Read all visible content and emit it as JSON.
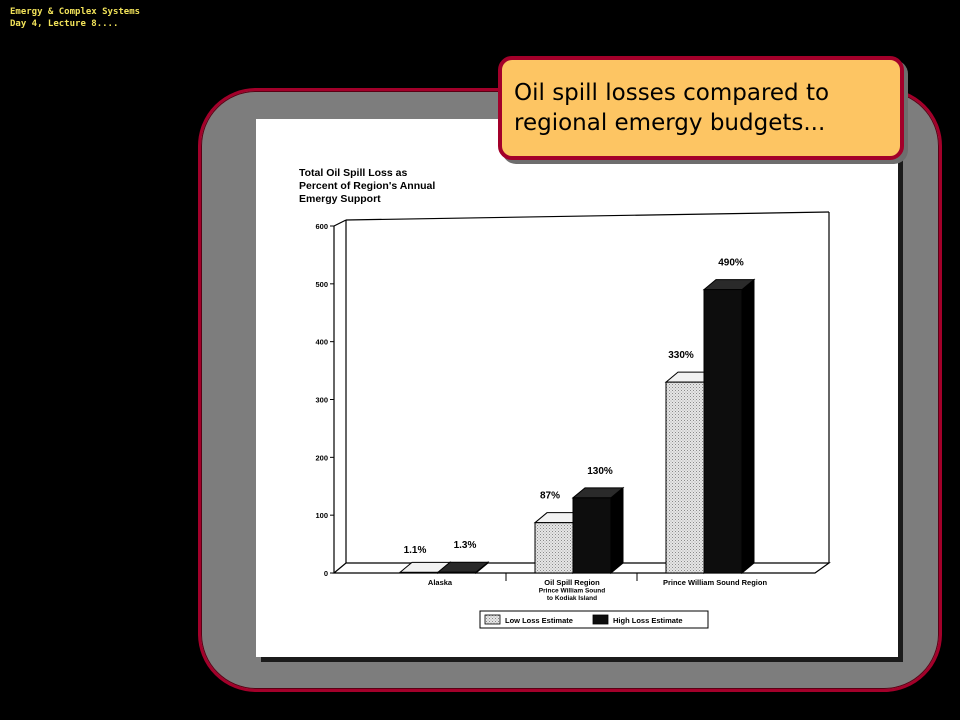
{
  "header": {
    "line1": "Emergy & Complex Systems",
    "line2": "Day 4, Lecture 8...."
  },
  "callout": {
    "text": "Oil spill losses compared to regional emergy budgets..."
  },
  "colors": {
    "frame_border": "#a3002a",
    "frame_fill": "#7d7d7d",
    "callout_fill": "#fdc563",
    "header_text": "#f2e35a"
  },
  "chart_data": {
    "type": "bar",
    "title_lines": [
      "Total Oil Spill Loss as",
      "Percent of Region's Annual",
      "Emergy Support"
    ],
    "categories": [
      {
        "lines": [
          "Alaska"
        ]
      },
      {
        "lines": [
          "Oil Spill Region",
          "Prince William Sound",
          "to Kodiak Island"
        ]
      },
      {
        "lines": [
          "Prince William Sound Region"
        ]
      }
    ],
    "series": [
      {
        "name": "Low Loss Estimate",
        "values": [
          1.1,
          87,
          330
        ],
        "labels": [
          "1.1%",
          "87%",
          "330%"
        ],
        "pattern": "stipple"
      },
      {
        "name": "High Loss Estimate",
        "values": [
          1.3,
          130,
          490
        ],
        "labels": [
          "1.3%",
          "130%",
          "490%"
        ],
        "pattern": "solid"
      }
    ],
    "yticks": [
      "0",
      "100",
      "200",
      "300",
      "400",
      "500",
      "600"
    ],
    "ylim": [
      0,
      600
    ],
    "grid": false,
    "legend_position": "bottom"
  }
}
